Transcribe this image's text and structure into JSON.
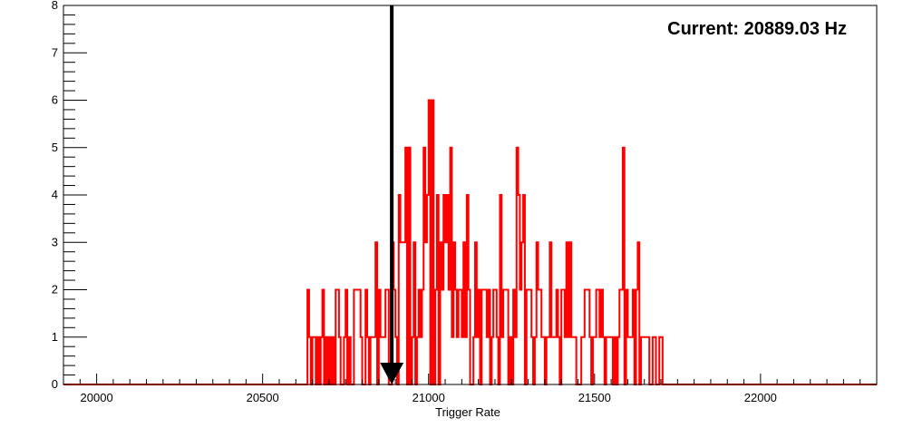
{
  "chart_data": {
    "type": "histogram",
    "title": "",
    "annotation": "Current: 20889.03 Hz",
    "xlabel": "Trigger Rate",
    "ylabel": "",
    "xlim": [
      19900,
      22350
    ],
    "ylim": [
      0,
      8
    ],
    "x_ticks": [
      20000,
      20500,
      21000,
      21500,
      22000
    ],
    "y_ticks": [
      0,
      1,
      2,
      3,
      4,
      5,
      6,
      7,
      8
    ],
    "line_color": "#ff0000",
    "marker": {
      "x": 20889.03,
      "from_y": 8,
      "to_y": 0,
      "color": "#000000"
    },
    "bins": {
      "start": 20635,
      "width": 5,
      "counts": [
        2,
        1,
        0,
        1,
        1,
        0,
        1,
        0,
        1,
        2,
        0,
        1,
        0,
        1,
        0,
        1,
        0,
        2,
        2,
        1,
        0,
        0,
        1,
        2,
        0,
        1,
        0,
        0,
        2,
        2,
        2,
        2,
        1,
        0,
        0,
        2,
        1,
        0,
        1,
        1,
        1,
        3,
        0,
        2,
        1,
        1,
        1,
        2,
        2,
        0,
        0,
        3,
        2,
        1,
        0,
        4,
        3,
        3,
        3,
        5,
        0,
        5,
        0,
        1,
        3,
        0,
        1,
        2,
        1,
        2,
        5,
        3,
        4,
        6,
        0,
        6,
        0,
        2,
        4,
        0,
        3,
        2,
        4,
        3,
        4,
        2,
        5,
        1,
        3,
        2,
        1,
        2,
        2,
        1,
        3,
        1,
        4,
        2,
        0,
        0,
        1,
        3,
        1,
        2,
        0,
        2,
        2,
        2,
        1,
        2,
        0,
        1,
        2,
        2,
        1,
        0,
        4,
        1,
        2,
        2,
        2,
        0,
        1,
        0,
        2,
        1,
        5,
        4,
        2,
        3,
        4,
        0,
        2,
        2,
        2,
        1,
        0,
        1,
        3,
        2,
        2,
        1,
        1,
        0,
        1,
        1,
        3,
        1,
        1,
        1,
        2,
        1,
        0,
        2,
        2,
        1,
        3,
        1,
        3,
        1,
        1,
        1,
        0,
        0,
        0,
        1,
        1,
        2,
        2,
        2,
        1,
        0,
        1,
        1,
        2,
        2,
        1,
        2,
        1,
        0,
        1,
        1,
        1,
        1,
        0,
        1,
        0,
        1,
        2,
        2,
        5,
        0,
        2,
        1,
        1,
        1,
        2,
        0,
        2,
        3,
        0,
        1,
        1,
        1,
        1,
        1,
        0,
        0,
        1,
        1,
        0,
        0,
        1,
        1,
        0,
        0
      ]
    }
  }
}
